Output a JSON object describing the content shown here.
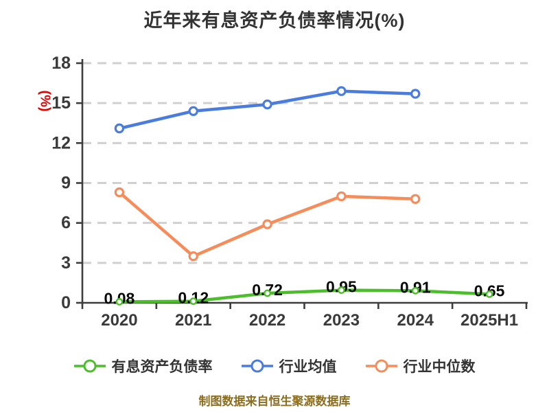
{
  "title": "近年来有息资产负债率情况(%)",
  "footer": "制图数据来自恒生聚源数据库",
  "colors": {
    "title": "#333333",
    "axis": "#3d3d3d",
    "tick_label": "#3a3a3a",
    "gridline": "#d0d0d0",
    "y_axis_label": "#e60000",
    "value_label": "#0a0a0a",
    "legend_text": "#333333",
    "footer": "#8b6d1c",
    "marker_fill": "#ffffff"
  },
  "chart_data": {
    "type": "line",
    "title": "近年来有息资产负债率情况(%)",
    "xlabel": "",
    "ylabel": "(%)",
    "categories": [
      "2020",
      "2021",
      "2022",
      "2023",
      "2024",
      "2025H1"
    ],
    "ylim": [
      0,
      18
    ],
    "yticks": [
      0,
      3,
      6,
      9,
      12,
      15,
      18
    ],
    "grid": "horizontal-dashed",
    "legend_position": "bottom",
    "series": [
      {
        "name": "有息资产负债率",
        "color": "#4dbe2b",
        "values": [
          0.08,
          0.12,
          0.72,
          0.95,
          0.91,
          0.65
        ],
        "labels": [
          "0.08",
          "0.12",
          "0.72",
          "0.95",
          "0.91",
          "0.65"
        ]
      },
      {
        "name": "行业均值",
        "color": "#4a7cde",
        "values": [
          13.1,
          14.4,
          14.9,
          15.9,
          15.7,
          null
        ]
      },
      {
        "name": "行业中位数",
        "color": "#f58c5a",
        "values": [
          8.3,
          3.5,
          5.9,
          8.0,
          7.8,
          null
        ]
      }
    ]
  }
}
